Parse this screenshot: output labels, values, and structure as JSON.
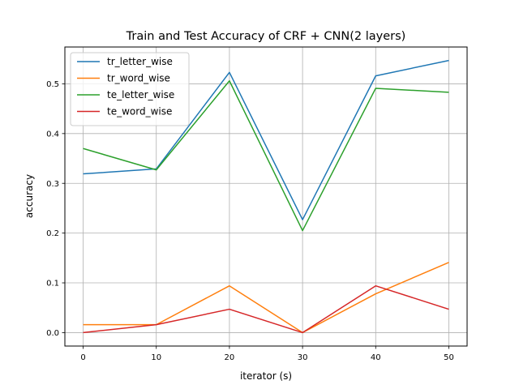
{
  "chart_data": {
    "type": "line",
    "title": "Train and Test Accuracy of CRF + CNN(2 layers)",
    "xlabel": "iterator (s)",
    "ylabel": "accuracy",
    "x": [
      0,
      10,
      20,
      30,
      40,
      50
    ],
    "xlim": [
      -2.5,
      52.5
    ],
    "ylim": [
      -0.027,
      0.574
    ],
    "xticks": [
      0,
      10,
      20,
      30,
      40,
      50
    ],
    "yticks": [
      0.0,
      0.1,
      0.2,
      0.3,
      0.4,
      0.5
    ],
    "xtick_labels": [
      "0",
      "10",
      "20",
      "30",
      "40",
      "50"
    ],
    "ytick_labels": [
      "0.0",
      "0.1",
      "0.2",
      "0.3",
      "0.4",
      "0.5"
    ],
    "grid": true,
    "legend_position": "top-left",
    "series": [
      {
        "name": "tr_letter_wise",
        "color": "#1f77b4",
        "values": [
          0.319,
          0.329,
          0.523,
          0.227,
          0.516,
          0.547
        ]
      },
      {
        "name": "tr_word_wise",
        "color": "#ff7f0e",
        "values": [
          0.016,
          0.016,
          0.094,
          0.0,
          0.078,
          0.141
        ]
      },
      {
        "name": "te_letter_wise",
        "color": "#2ca02c",
        "values": [
          0.37,
          0.327,
          0.506,
          0.205,
          0.491,
          0.483
        ]
      },
      {
        "name": "te_word_wise",
        "color": "#d62728",
        "values": [
          0.0,
          0.016,
          0.047,
          0.0,
          0.094,
          0.047
        ]
      }
    ]
  }
}
